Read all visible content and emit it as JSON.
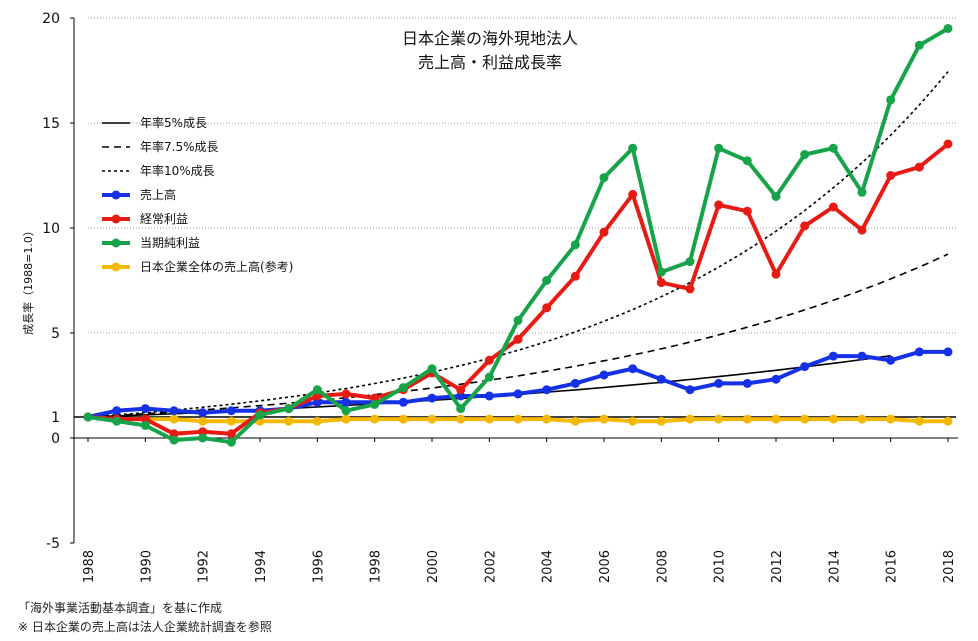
{
  "chart_data": {
    "type": "line",
    "title": "日本企業の海外現地法人",
    "subtitle": "売上高・利益成長率",
    "ylabel": "成長率（1988=1.0）",
    "xlabel": "",
    "xlim": [
      1988,
      2018
    ],
    "ylim": [
      -5,
      20
    ],
    "y_ticks": [
      "20",
      "15",
      "10",
      "5",
      "1",
      "0",
      "-5"
    ],
    "y_tick_values": [
      20,
      15,
      10,
      5,
      1,
      0,
      -5
    ],
    "x_ticks": [
      "1988",
      "1990",
      "1992",
      "1994",
      "1996",
      "1998",
      "2000",
      "2002",
      "2004",
      "2006",
      "2008",
      "2010",
      "2012",
      "2014",
      "2016",
      "2018"
    ],
    "x_tick_values": [
      1988,
      1990,
      1992,
      1994,
      1996,
      1998,
      2000,
      2002,
      2004,
      2006,
      2008,
      2010,
      2012,
      2014,
      2016,
      2018
    ],
    "grid": "horizontal dotted",
    "legend": "left",
    "x": [
      1988,
      1989,
      1990,
      1991,
      1992,
      1993,
      1994,
      1995,
      1996,
      1997,
      1998,
      1999,
      2000,
      2001,
      2002,
      2003,
      2004,
      2005,
      2006,
      2007,
      2008,
      2009,
      2010,
      2011,
      2012,
      2013,
      2014,
      2015,
      2016,
      2017,
      2018
    ],
    "series": [
      {
        "name": "年率5%成長",
        "style": "solid",
        "color": "#000000",
        "rate": 0.05,
        "x_start": 1988,
        "x_end": 2016
      },
      {
        "name": "年率7.5%成長",
        "style": "dashed",
        "color": "#000000",
        "rate": 0.075,
        "x_start": 1988,
        "x_end": 2018
      },
      {
        "name": "年率10%成長",
        "style": "dotted",
        "color": "#000000",
        "rate": 0.1,
        "x_start": 1988,
        "x_end": 2018
      },
      {
        "name": "売上高",
        "style": "marker",
        "color": "#1431e6",
        "values": [
          1.0,
          1.3,
          1.4,
          1.3,
          1.2,
          1.3,
          1.3,
          1.4,
          1.7,
          1.7,
          1.7,
          1.7,
          1.9,
          2.0,
          2.0,
          2.1,
          2.3,
          2.6,
          3.0,
          3.3,
          2.8,
          2.3,
          2.6,
          2.6,
          2.8,
          3.4,
          3.9,
          3.9,
          3.7,
          4.1,
          4.1
        ]
      },
      {
        "name": "経常利益",
        "style": "marker",
        "color": "#e81a14",
        "values": [
          1.0,
          0.9,
          0.9,
          0.2,
          0.3,
          0.2,
          1.2,
          1.4,
          2.0,
          2.1,
          1.9,
          2.3,
          3.1,
          2.3,
          3.7,
          4.7,
          6.2,
          7.7,
          9.8,
          11.6,
          7.4,
          7.1,
          11.1,
          10.8,
          7.8,
          10.1,
          11.0,
          9.9,
          12.5,
          12.9,
          14.0
        ]
      },
      {
        "name": "当期純利益",
        "style": "marker",
        "color": "#16a349",
        "values": [
          1.0,
          0.8,
          0.6,
          -0.1,
          0.0,
          -0.2,
          1.1,
          1.4,
          2.3,
          1.3,
          1.6,
          2.4,
          3.3,
          1.4,
          2.9,
          5.6,
          7.5,
          9.2,
          12.4,
          13.8,
          7.9,
          8.4,
          13.8,
          13.2,
          11.5,
          13.5,
          13.8,
          11.7,
          16.1,
          18.7,
          19.5
        ]
      },
      {
        "name": "日本企業全体の売上高(参考)",
        "style": "marker",
        "color": "#f5b800",
        "values": [
          1.0,
          0.9,
          0.9,
          0.9,
          0.8,
          0.8,
          0.8,
          0.8,
          0.8,
          0.9,
          0.9,
          0.9,
          0.9,
          0.9,
          0.9,
          0.9,
          0.9,
          0.8,
          0.9,
          0.8,
          0.8,
          0.9,
          0.9,
          0.9,
          0.9,
          0.9,
          0.9,
          0.9,
          0.9,
          0.8,
          0.8
        ]
      }
    ],
    "reference_line": {
      "y": 1.0
    }
  },
  "notes": [
    "「海外事業活動基本調査」を基に作成",
    "※ 日本企業の売上高は法人企業統計調査を参照"
  ]
}
